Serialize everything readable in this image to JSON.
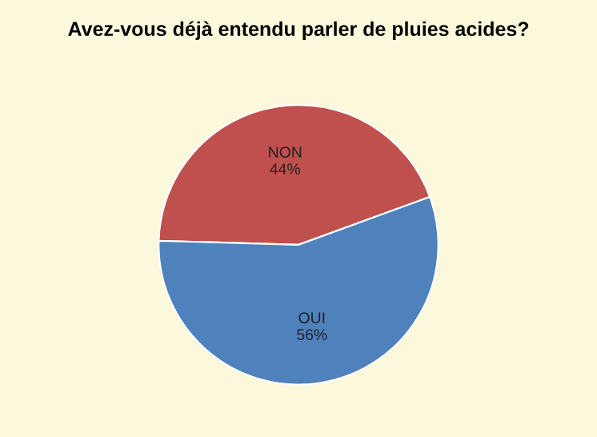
{
  "chart_data": {
    "type": "pie",
    "title": "Avez-vous déjà entendu parler de pluies acides?",
    "categories": [
      "NON",
      "OUI"
    ],
    "values": [
      44,
      56
    ],
    "value_labels": [
      "44%",
      "56%"
    ],
    "colors": [
      "#c0504d",
      "#4f81bd"
    ],
    "legend": false
  }
}
